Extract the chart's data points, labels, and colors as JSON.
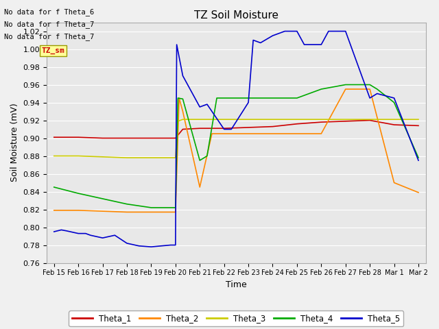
{
  "title": "TZ Soil Moisture",
  "ylabel": "Soil Moisture (mV)",
  "xlabel": "Time",
  "ylim": [
    0.76,
    1.03
  ],
  "fig_facecolor": "#f0f0f0",
  "plot_bg_color": "#e8e8e8",
  "no_data_texts": [
    "No data for f Theta_6",
    "No data for f Theta_7",
    "No data for f Theta_7"
  ],
  "tz_sm_label": "TZ_sm",
  "tz_sm_box_color": "#ffff99",
  "tz_sm_text_color": "#cc0000",
  "x_tick_labels": [
    "Feb 15",
    "Feb 16",
    "Feb 17",
    "Feb 18",
    "Feb 19",
    "Feb 20",
    "Feb 21",
    "Feb 22",
    "Feb 23",
    "Feb 24",
    "Feb 25",
    "Feb 26",
    "Feb 27",
    "Feb 28",
    "Mar 1",
    "Mar 2"
  ],
  "legend_entries": [
    "Theta_1",
    "Theta_2",
    "Theta_3",
    "Theta_4",
    "Theta_5"
  ],
  "line_colors": {
    "Theta_1": "#cc0000",
    "Theta_2": "#ff8800",
    "Theta_3": "#cccc00",
    "Theta_4": "#00aa00",
    "Theta_5": "#0000cc"
  },
  "series": {
    "Theta_1": {
      "x": [
        0,
        1,
        2,
        3,
        4,
        5,
        5.3,
        6,
        7,
        8,
        9,
        10,
        11,
        12,
        13,
        14,
        15
      ],
      "y": [
        0.901,
        0.901,
        0.9,
        0.9,
        0.9,
        0.9,
        0.91,
        0.911,
        0.911,
        0.912,
        0.913,
        0.916,
        0.918,
        0.919,
        0.92,
        0.915,
        0.914
      ]
    },
    "Theta_2": {
      "x": [
        0,
        1,
        2,
        3,
        4,
        5,
        5.15,
        5.3,
        6,
        6.5,
        7,
        7.5,
        8,
        9,
        10,
        11,
        12,
        13,
        14,
        15
      ],
      "y": [
        0.819,
        0.819,
        0.818,
        0.817,
        0.817,
        0.817,
        0.945,
        0.93,
        0.845,
        0.905,
        0.905,
        0.905,
        0.905,
        0.905,
        0.905,
        0.905,
        0.955,
        0.955,
        0.85,
        0.839
      ]
    },
    "Theta_3": {
      "x": [
        0,
        1,
        2,
        3,
        4,
        5,
        5.1,
        5.3,
        6,
        7,
        8,
        9,
        10,
        11,
        12,
        13,
        14,
        15
      ],
      "y": [
        0.88,
        0.88,
        0.879,
        0.878,
        0.878,
        0.878,
        0.919,
        0.921,
        0.921,
        0.921,
        0.921,
        0.921,
        0.921,
        0.921,
        0.921,
        0.921,
        0.921,
        0.921
      ]
    },
    "Theta_4": {
      "x": [
        0,
        1,
        2,
        3,
        4,
        5,
        5.1,
        5.3,
        6,
        6.3,
        6.7,
        7,
        8,
        9,
        10,
        11,
        12,
        13,
        13.3,
        14,
        15
      ],
      "y": [
        0.845,
        0.838,
        0.832,
        0.826,
        0.822,
        0.822,
        0.945,
        0.944,
        0.875,
        0.88,
        0.945,
        0.945,
        0.945,
        0.945,
        0.945,
        0.955,
        0.96,
        0.96,
        0.955,
        0.94,
        0.878
      ]
    },
    "Theta_5": {
      "x": [
        0,
        0.3,
        0.5,
        1,
        1.3,
        1.5,
        2,
        2.5,
        3,
        3.5,
        4,
        4.8,
        5,
        5.05,
        5.3,
        6,
        6.3,
        7,
        7.3,
        8,
        8.2,
        8.5,
        9,
        9.5,
        10,
        10.3,
        11,
        11.3,
        12,
        13,
        13.3,
        14,
        15
      ],
      "y": [
        0.795,
        0.797,
        0.796,
        0.793,
        0.793,
        0.791,
        0.788,
        0.791,
        0.782,
        0.779,
        0.778,
        0.78,
        0.78,
        1.005,
        0.97,
        0.935,
        0.938,
        0.91,
        0.91,
        0.94,
        1.01,
        1.007,
        1.015,
        1.02,
        1.02,
        1.005,
        1.005,
        1.02,
        1.02,
        0.945,
        0.95,
        0.945,
        0.875
      ]
    }
  }
}
